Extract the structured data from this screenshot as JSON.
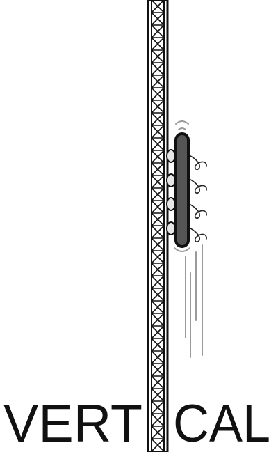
{
  "words": {
    "left": "VERT",
    "right": "CAL"
  },
  "colors": {
    "background": "#ffffff",
    "ink": "#111111",
    "paddle_fill": "#555555",
    "bubble_fill": "#e6e6e6",
    "motion_lines": "#9a9a9a"
  },
  "elements": {
    "tower": "lattice-tower-icon",
    "capsule": "paddle-capsule-icon",
    "bubbles": "bubble-icon",
    "swirls": "swirl-icon",
    "speed_lines": "motion-line-icon"
  }
}
